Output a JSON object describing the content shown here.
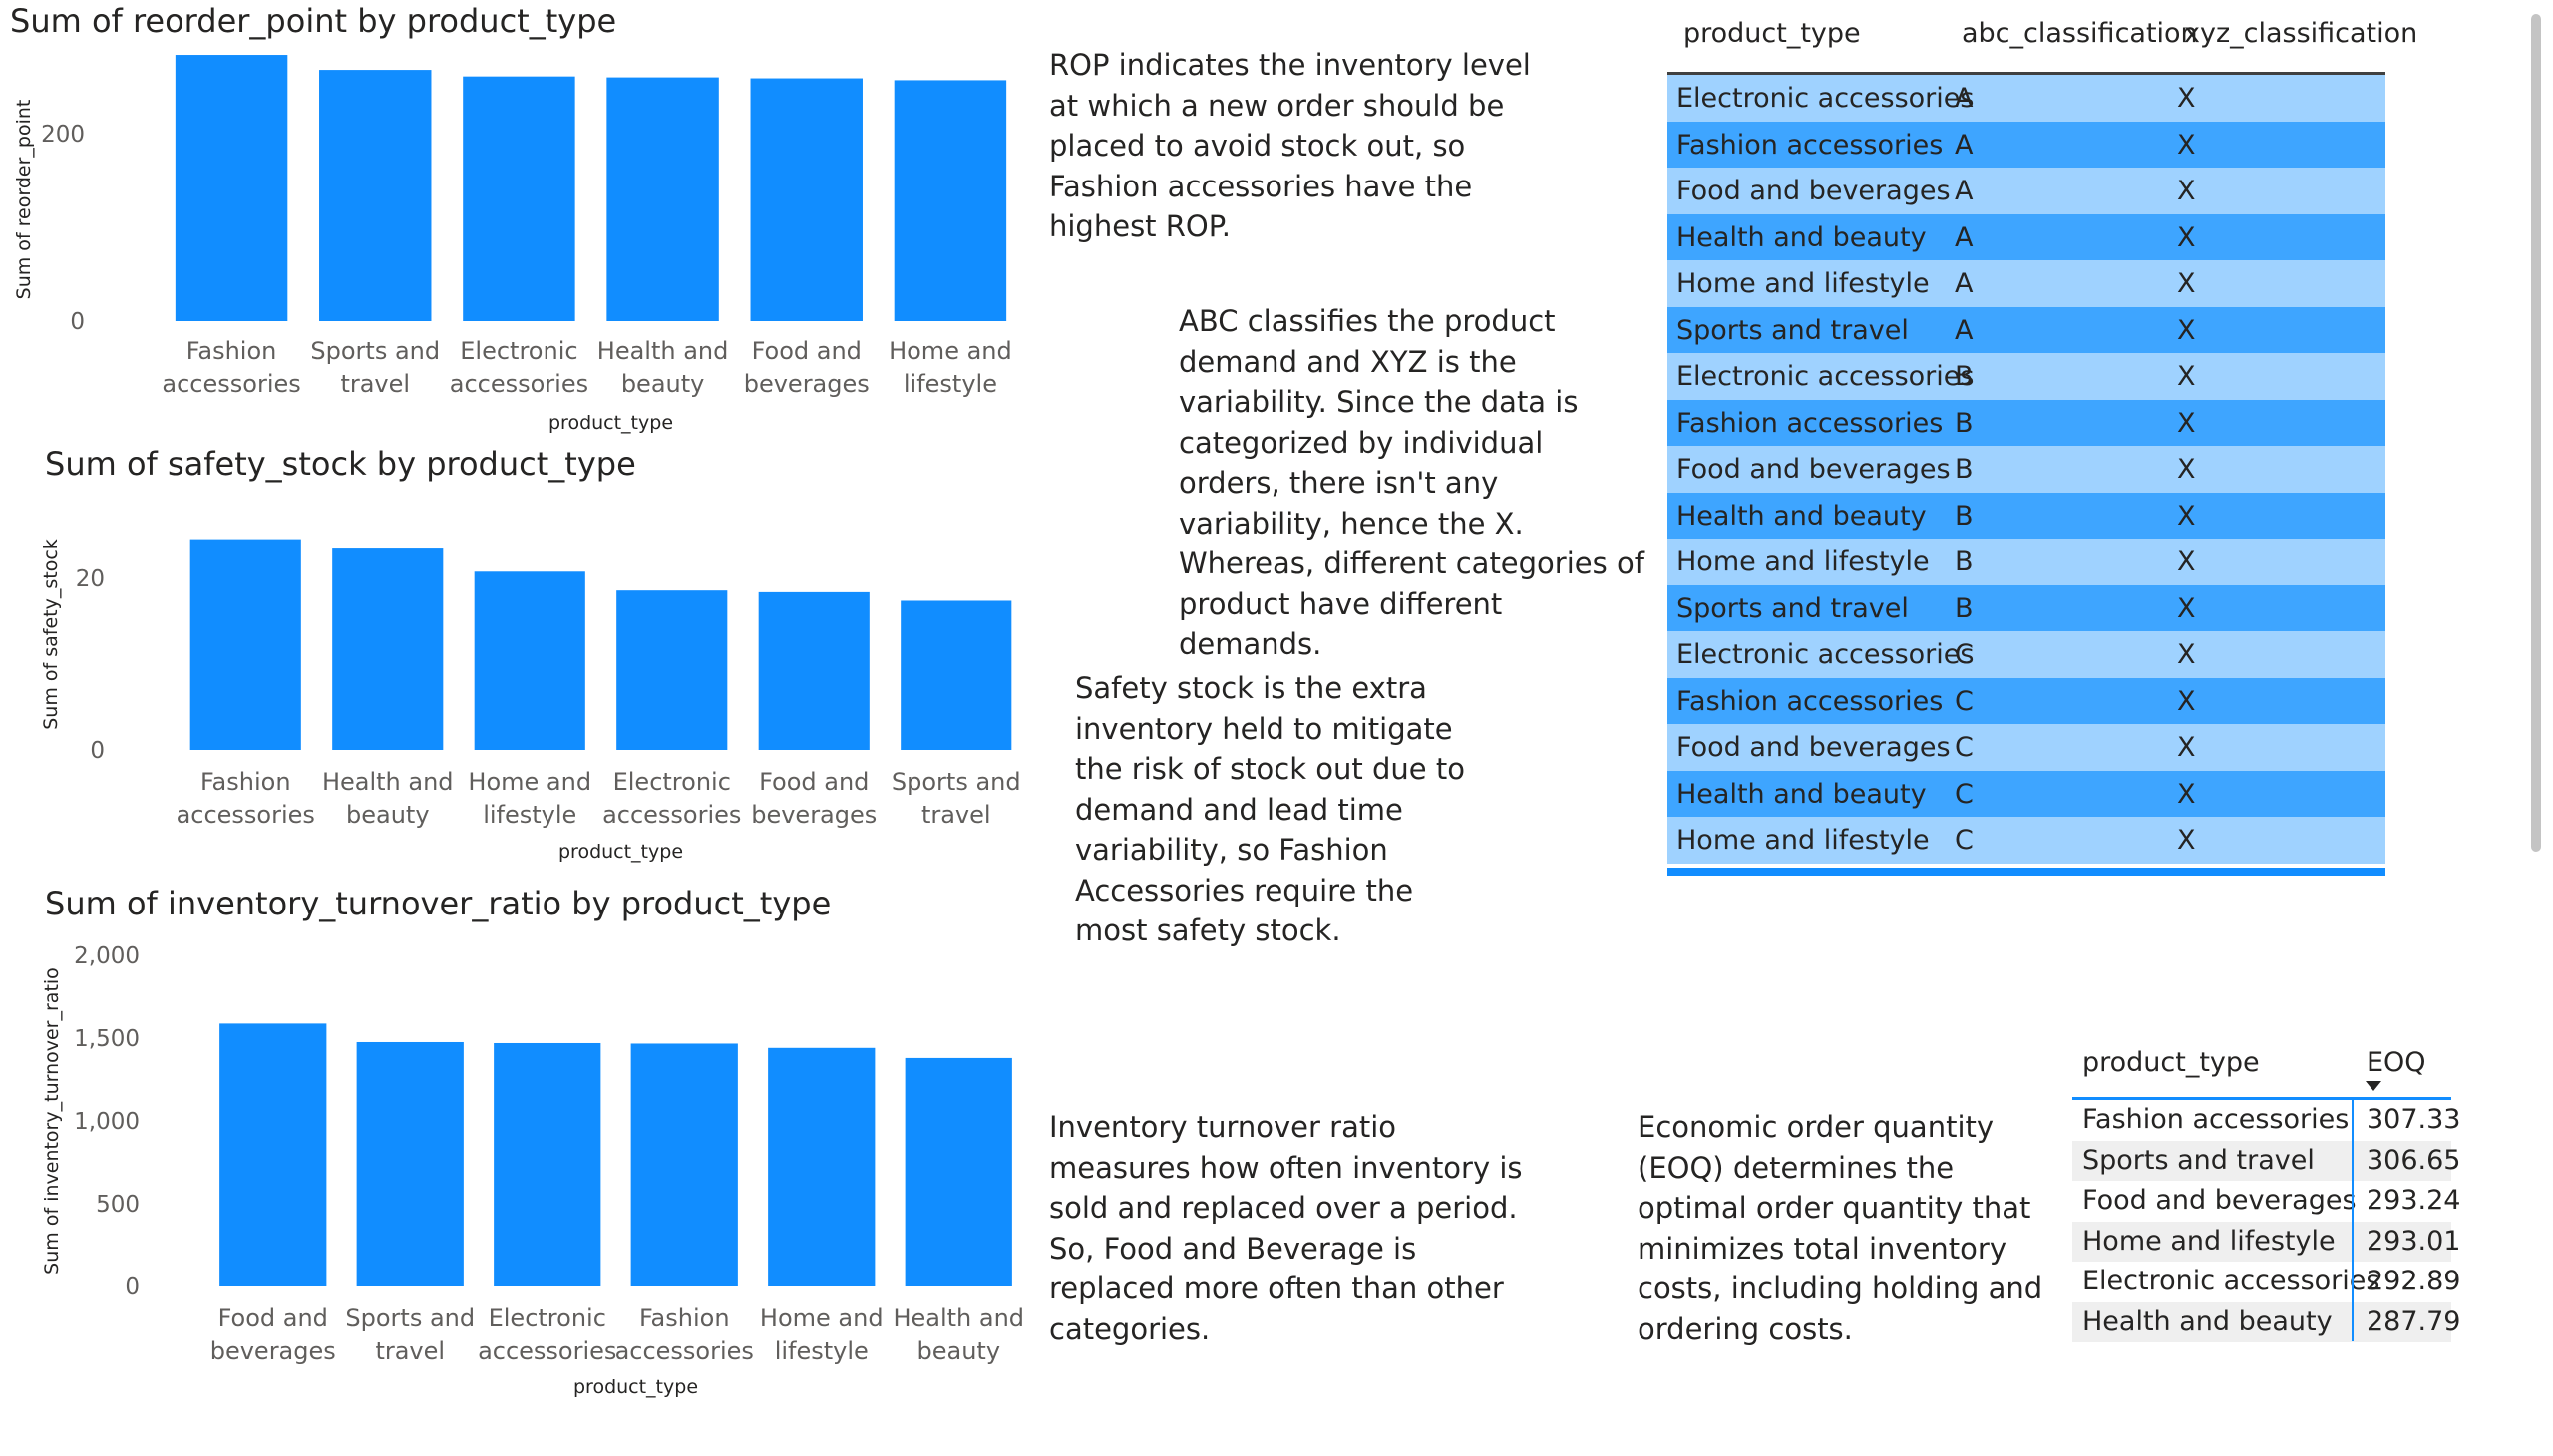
{
  "chart_data": [
    {
      "type": "bar",
      "title": "Sum of reorder_point by product_type",
      "xlabel": "product_type",
      "ylabel": "Sum of reorder_point",
      "categories": [
        [
          "Fashion",
          "accessories"
        ],
        [
          "Sports and",
          "travel"
        ],
        [
          "Electronic",
          "accessories"
        ],
        [
          "Health and",
          "beauty"
        ],
        [
          "Food and",
          "beverages"
        ],
        [
          "Home and",
          "lifestyle"
        ]
      ],
      "values": [
        284,
        268,
        261,
        260,
        259,
        257
      ],
      "ylim": [
        0,
        300
      ],
      "yticks": [
        0,
        200
      ],
      "ytick_labels": [
        "0",
        "200"
      ],
      "grid": false,
      "color": "#118dff"
    },
    {
      "type": "bar",
      "title": "Sum of safety_stock by product_type",
      "xlabel": "product_type",
      "ylabel": "Sum of safety_stock",
      "categories": [
        [
          "Fashion",
          "accessories"
        ],
        [
          "Health and",
          "beauty"
        ],
        [
          "Home and",
          "lifestyle"
        ],
        [
          "Electronic",
          "accessories"
        ],
        [
          "Food and",
          "beverages"
        ],
        [
          "Sports and",
          "travel"
        ]
      ],
      "values": [
        24.6,
        23.5,
        20.8,
        18.6,
        18.4,
        17.4
      ],
      "ylim": [
        0,
        27
      ],
      "yticks": [
        0,
        20
      ],
      "ytick_labels": [
        "0",
        "20"
      ],
      "grid": false,
      "color": "#118dff"
    },
    {
      "type": "bar",
      "title": "Sum of inventory_turnover_ratio by product_type",
      "xlabel": "product_type",
      "ylabel": "Sum of inventory_turnover_ratio",
      "categories": [
        [
          "Food and",
          "beverages"
        ],
        [
          "Sports and",
          "travel"
        ],
        [
          "Electronic",
          "accessories"
        ],
        [
          "Fashion",
          "accessories"
        ],
        [
          "Home and",
          "lifestyle"
        ],
        [
          "Health and",
          "beauty"
        ]
      ],
      "values": [
        1588,
        1476,
        1470,
        1467,
        1441,
        1380
      ],
      "ylim": [
        0,
        2000
      ],
      "yticks": [
        0,
        500,
        1000,
        1500,
        2000
      ],
      "ytick_labels": [
        "0",
        "500",
        "1,000",
        "1,500",
        "2,000"
      ],
      "grid": false,
      "color": "#118dff"
    }
  ],
  "narratives": {
    "rop": "ROP indicates the inventory level at which a new order should be placed to avoid stock out, so Fashion accessories have the highest ROP.",
    "abc": "ABC classifies the product demand and XYZ is the variability. Since the data is categorized by individual orders, there isn't any variability, hence the X. Whereas, different categories of product have different demands.",
    "safety": "Safety stock is the extra inventory held to mitigate the risk of stock out due to demand and lead time variability, so Fashion Accessories require the most safety stock.",
    "turnover": "Inventory turnover ratio measures how often inventory is sold and replaced over a period. So, Food and Beverage is replaced more often than other categories.",
    "eoq": "Economic order quantity (EOQ) determines the optimal order quantity that minimizes total inventory costs, including holding and ordering costs."
  },
  "classification_table": {
    "headers": {
      "product_type": "product_type",
      "abc": "abc_classification",
      "xyz": "xyz_classification"
    },
    "rows": [
      [
        "Electronic accessories",
        "A",
        "X"
      ],
      [
        "Fashion accessories",
        "A",
        "X"
      ],
      [
        "Food and beverages",
        "A",
        "X"
      ],
      [
        "Health and beauty",
        "A",
        "X"
      ],
      [
        "Home and lifestyle",
        "A",
        "X"
      ],
      [
        "Sports and travel",
        "A",
        "X"
      ],
      [
        "Electronic accessories",
        "B",
        "X"
      ],
      [
        "Fashion accessories",
        "B",
        "X"
      ],
      [
        "Food and beverages",
        "B",
        "X"
      ],
      [
        "Health and beauty",
        "B",
        "X"
      ],
      [
        "Home and lifestyle",
        "B",
        "X"
      ],
      [
        "Sports and travel",
        "B",
        "X"
      ],
      [
        "Electronic accessories",
        "C",
        "X"
      ],
      [
        "Fashion accessories",
        "C",
        "X"
      ],
      [
        "Food and beverages",
        "C",
        "X"
      ],
      [
        "Health and beauty",
        "C",
        "X"
      ],
      [
        "Home and lifestyle",
        "C",
        "X"
      ]
    ],
    "colors": {
      "odd_row": "#9fd2ff",
      "even_row": "#3ea5ff",
      "accent": "#118dff"
    }
  },
  "eoq_table": {
    "headers": {
      "product_type": "product_type",
      "eoq": "EOQ"
    },
    "sort_icon": "sort-descending-icon",
    "rows": [
      [
        "Fashion accessories",
        "307.33"
      ],
      [
        "Sports and travel",
        "306.65"
      ],
      [
        "Food and beverages",
        "293.24"
      ],
      [
        "Home and lifestyle",
        "293.01"
      ],
      [
        "Electronic accessories",
        "292.89"
      ],
      [
        "Health and beauty",
        "287.79"
      ]
    ]
  }
}
